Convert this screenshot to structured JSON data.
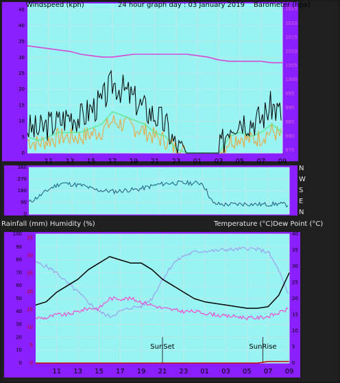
{
  "header": {
    "left_label": "Windspeed (kph)",
    "title": "24 hour graph day : 03 January 2019",
    "right_label": "Barometer (hpa)"
  },
  "compass": [
    "N",
    "W",
    "S",
    "E",
    "N"
  ],
  "lower_header": {
    "left_label": "Rainfall (mm)  Humidity (%)",
    "right_label": "Temperature (°C)Dew Point (°C)"
  },
  "x_tick_labels": [
    "11",
    "13",
    "15",
    "17",
    "19",
    "21",
    "23",
    "01",
    "03",
    "05",
    "07",
    "09"
  ],
  "x_tick_labels_lower": [
    "11",
    "13",
    "15",
    "17",
    "19",
    "21",
    "23",
    "01",
    "03",
    "05",
    "07",
    "09"
  ],
  "events": {
    "sunset": "SunSet",
    "sunrise": "SunRise"
  },
  "colors": {
    "panel_bg": "#97f4f2",
    "border": "#8a1fff",
    "wind_gust": "#000000",
    "wind_avg": "#f0a030",
    "wind_smooth": "#60e890",
    "barometer": "#d848d8",
    "wind_dir": "#1a5a80",
    "temperature": "#000000",
    "humidity": "#a090f0",
    "dewpoint": "#ff30d0",
    "rain": "#cc0000"
  },
  "chart_data": [
    {
      "type": "line",
      "name": "wind-baro",
      "y_left_ticks": [
        0,
        5,
        10,
        15,
        20,
        25,
        30,
        35,
        40,
        45
      ],
      "y_right_ticks": [
        975,
        980,
        985,
        990,
        995,
        1000,
        1005,
        1010,
        1015,
        1020,
        1025
      ],
      "ylim_left": [
        0,
        47
      ],
      "ylim_right": [
        974,
        1027
      ],
      "x_hours": [
        9,
        10,
        11,
        12,
        13,
        14,
        15,
        16,
        17,
        18,
        19,
        20,
        21,
        22,
        23,
        24,
        25,
        26,
        27,
        28,
        29,
        30,
        31,
        32,
        33
      ],
      "series": [
        {
          "values": [
            1012,
            1011.5,
            1011,
            1010.5,
            1010,
            1009,
            1008.5,
            1008,
            1008,
            1008.5,
            1009,
            1009,
            1009,
            1009,
            1009,
            1009,
            1008.5,
            1008,
            1007,
            1006.5,
            1006.5,
            1006.5,
            1006.5,
            1006,
            1006
          ]
        },
        {
          "values": [
            8,
            7,
            9,
            10,
            12,
            11,
            14,
            16,
            22,
            20,
            17,
            14,
            12,
            9,
            2,
            0,
            0,
            0,
            0,
            9,
            11,
            10,
            11,
            15,
            12
          ]
        },
        {
          "values": [
            4,
            3,
            4,
            5,
            5,
            5,
            6,
            7,
            10,
            9,
            8,
            7,
            5,
            4,
            1,
            0,
            0,
            0,
            0,
            4,
            5,
            4,
            5,
            7,
            5
          ]
        }
      ]
    },
    {
      "type": "line",
      "name": "wind-direction",
      "y_ticks": [
        360,
        270,
        180,
        90,
        0
      ],
      "ylim": [
        0,
        360
      ],
      "x_hours": [
        9,
        10,
        11,
        12,
        13,
        14,
        15,
        16,
        17,
        18,
        19,
        20,
        21,
        22,
        23,
        24,
        25,
        26,
        27,
        28,
        29,
        30,
        31,
        32,
        33
      ],
      "series": [
        {
          "values": [
            90,
            140,
            200,
            240,
            230,
            220,
            190,
            180,
            175,
            185,
            190,
            210,
            230,
            240,
            240,
            240,
            240,
            80,
            75,
            75,
            80,
            75,
            75,
            80,
            70
          ]
        }
      ]
    },
    {
      "type": "line",
      "name": "temp-humidity",
      "y_left_ticks": [
        0,
        10,
        20,
        30,
        40,
        50,
        60,
        70,
        80,
        90,
        100
      ],
      "y_right_ticks": [
        0,
        5,
        10,
        15,
        20,
        25,
        30,
        35,
        40
      ],
      "ylim_left": [
        0,
        100
      ],
      "ylim_right": [
        0,
        40
      ],
      "x_hours": [
        9,
        10,
        11,
        12,
        13,
        14,
        15,
        16,
        17,
        18,
        19,
        20,
        21,
        22,
        23,
        24,
        25,
        26,
        27,
        28,
        29,
        30,
        31,
        32,
        33
      ],
      "series": [
        {
          "values": [
            18,
            19,
            22,
            24,
            26,
            29,
            31,
            33,
            32,
            31,
            31,
            29,
            26,
            24,
            22,
            20,
            19,
            18.5,
            18,
            17.5,
            17,
            17,
            17.5,
            21,
            28
          ]
        },
        {
          "values": [
            78,
            75,
            70,
            62,
            55,
            47,
            40,
            36,
            40,
            43,
            44,
            50,
            65,
            77,
            83,
            86,
            87,
            87,
            88,
            88,
            89,
            88,
            86,
            72,
            50
          ]
        },
        {
          "values": [
            14,
            14,
            15,
            15,
            16,
            17,
            17,
            20,
            20,
            20,
            19,
            18,
            17,
            16.5,
            16,
            16,
            15.5,
            15,
            14.5,
            14.5,
            14,
            14,
            14.5,
            15.5,
            17
          ]
        },
        {
          "values": [
            0,
            0,
            0,
            0,
            0,
            0,
            0,
            0,
            0,
            0,
            0,
            0,
            0,
            0,
            0,
            0,
            0,
            0,
            0,
            0,
            0,
            0,
            0.5,
            0.5,
            0.5
          ]
        }
      ]
    }
  ]
}
